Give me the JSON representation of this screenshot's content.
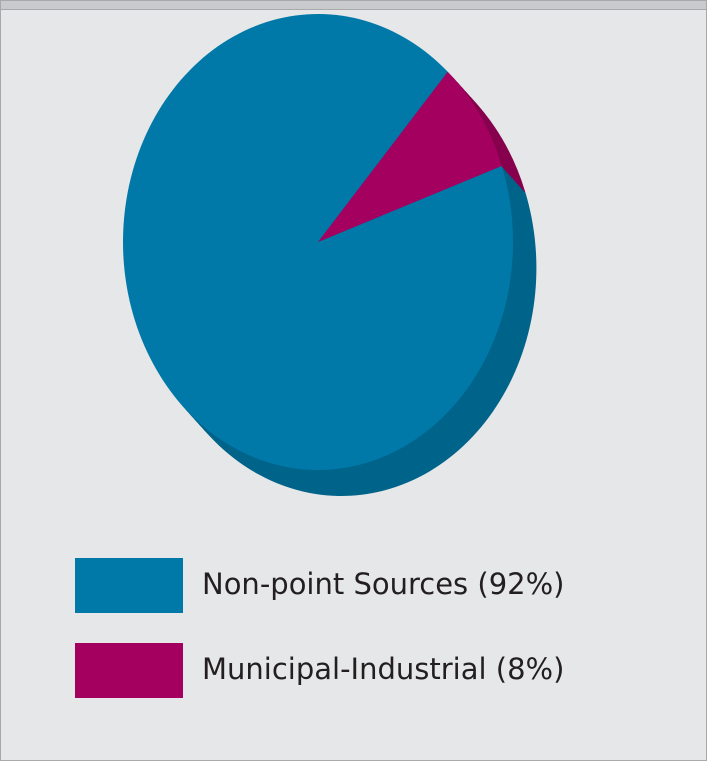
{
  "chart_data": {
    "type": "pie",
    "categories": [
      "Non-point Sources (92%)",
      "Municipal-Industrial (8%)"
    ],
    "values": [
      92,
      8
    ],
    "colors": [
      "#0079a8",
      "#a3005f"
    ]
  }
}
